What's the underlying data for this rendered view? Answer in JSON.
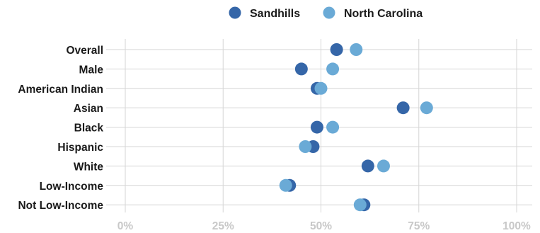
{
  "chart_data": {
    "type": "scatter",
    "title": "",
    "xlabel": "",
    "ylabel": "",
    "xlim": [
      0,
      100
    ],
    "xticks": [
      0,
      25,
      50,
      75,
      100
    ],
    "tick_labels": [
      "0%",
      "25%",
      "50%",
      "75%",
      "100%"
    ],
    "grid": true,
    "legend_position": "top",
    "categories": [
      "Overall",
      "Male",
      "American Indian",
      "Asian",
      "Black",
      "Hispanic",
      "White",
      "Low-Income",
      "Not Low-Income"
    ],
    "series": [
      {
        "name": "Sandhills",
        "color": "#3566a8",
        "values": [
          54,
          45,
          49,
          71,
          49,
          48,
          62,
          42,
          61
        ]
      },
      {
        "name": "North Carolina",
        "color": "#6aaad6",
        "values": [
          59,
          53,
          50,
          77,
          53,
          46,
          66,
          41,
          60
        ]
      }
    ]
  }
}
